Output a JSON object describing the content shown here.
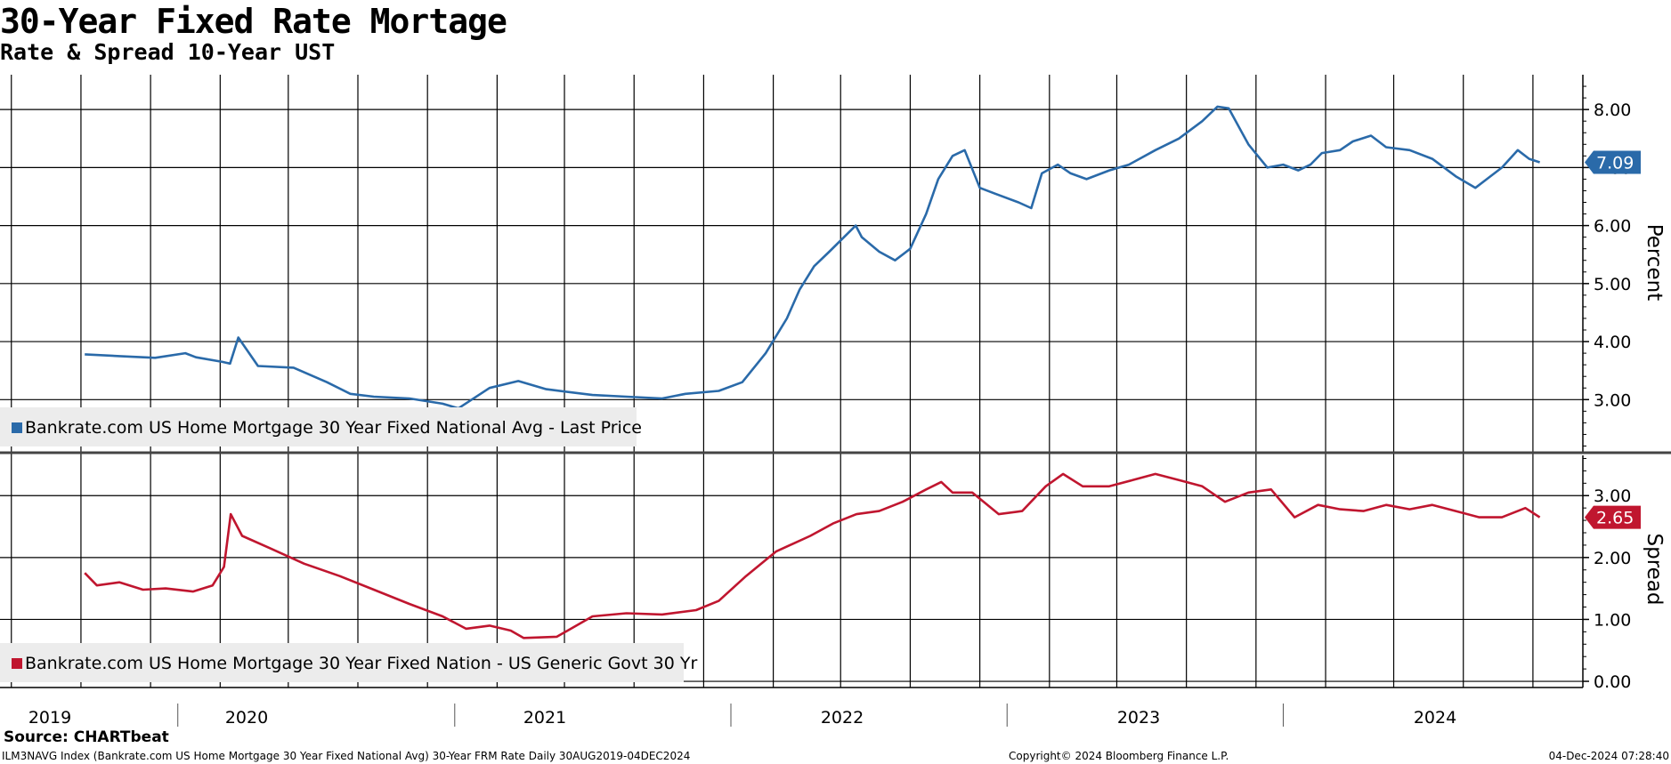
{
  "header": {
    "title": "30-Year Fixed Rate Mortage",
    "subtitle": "Rate & Spread 10-Year UST"
  },
  "footer": {
    "source": "Source: CHARTbeat",
    "description": "ILM3NAVG Index (Bankrate.com US Home Mortgage 30 Year Fixed National Avg) 30-Year FRM Rate  Daily 30AUG2019-04DEC2024",
    "copyright": "Copyright© 2024 Bloomberg Finance L.P.",
    "timestamp": "04-Dec-2024 07:28:40"
  },
  "colors": {
    "rate": "#2a6aa9",
    "spread": "#c0162f",
    "grid": "#000000"
  },
  "chart_data": [
    {
      "type": "line",
      "ylabel": "Percent",
      "ylim": [
        2.1,
        8.6
      ],
      "yticks": [
        "3.00",
        "4.00",
        "5.00",
        "6.00",
        "7.00",
        "8.00"
      ],
      "xticks": [
        "2019",
        "2020",
        "2021",
        "2022",
        "2023",
        "2024"
      ],
      "last_value": "7.09",
      "legend": "Bankrate.com US Home Mortgage 30 Year Fixed National Avg - Last Price",
      "series": [
        {
          "name": "Bankrate.com US Home Mortgage 30 Year Fixed National Avg - Last Price",
          "x": [
            "2019-08-30",
            "2019-10-15",
            "2019-12-01",
            "2020-01-10",
            "2020-01-24",
            "2020-02-28",
            "2020-03-09",
            "2020-03-20",
            "2020-04-15",
            "2020-06-01",
            "2020-07-15",
            "2020-08-15",
            "2020-09-15",
            "2020-11-01",
            "2020-12-15",
            "2021-01-05",
            "2021-02-15",
            "2021-03-25",
            "2021-05-01",
            "2021-07-01",
            "2021-08-15",
            "2021-10-01",
            "2021-11-01",
            "2021-12-15",
            "2022-01-15",
            "2022-02-15",
            "2022-03-15",
            "2022-04-01",
            "2022-04-20",
            "2022-05-10",
            "2022-06-14",
            "2022-06-22",
            "2022-07-15",
            "2022-08-05",
            "2022-08-25",
            "2022-09-15",
            "2022-10-01",
            "2022-10-20",
            "2022-11-05",
            "2022-11-25",
            "2022-12-15",
            "2023-01-15",
            "2023-02-01",
            "2023-02-15",
            "2023-03-08",
            "2023-03-25",
            "2023-04-15",
            "2023-05-15",
            "2023-06-10",
            "2023-07-15",
            "2023-08-15",
            "2023-09-15",
            "2023-10-05",
            "2023-10-20",
            "2023-11-15",
            "2023-12-10",
            "2023-12-31",
            "2024-01-20",
            "2024-02-05",
            "2024-02-20",
            "2024-03-15",
            "2024-04-01",
            "2024-04-25",
            "2024-05-15",
            "2024-06-15",
            "2024-07-15",
            "2024-08-15",
            "2024-09-10",
            "2024-09-25",
            "2024-10-15",
            "2024-11-05",
            "2024-11-20",
            "2024-12-04"
          ],
          "values": [
            3.78,
            3.75,
            3.72,
            3.8,
            3.73,
            3.65,
            3.62,
            4.07,
            3.58,
            3.55,
            3.3,
            3.1,
            3.05,
            3.02,
            2.93,
            2.85,
            3.2,
            3.32,
            3.18,
            3.08,
            3.05,
            3.02,
            3.1,
            3.15,
            3.3,
            3.8,
            4.4,
            4.9,
            5.3,
            5.55,
            6.0,
            5.8,
            5.55,
            5.4,
            5.6,
            6.2,
            6.8,
            7.2,
            7.3,
            6.65,
            6.55,
            6.4,
            6.3,
            6.9,
            7.05,
            6.9,
            6.8,
            6.95,
            7.05,
            7.3,
            7.5,
            7.8,
            8.05,
            8.02,
            7.4,
            7.0,
            7.05,
            6.95,
            7.05,
            7.25,
            7.3,
            7.45,
            7.55,
            7.35,
            7.3,
            7.15,
            6.85,
            6.65,
            6.8,
            7.0,
            7.3,
            7.15,
            7.09
          ]
        }
      ]
    },
    {
      "type": "line",
      "ylabel": "Spread",
      "ylim": [
        -0.1,
        3.65
      ],
      "yticks": [
        "0.00",
        "1.00",
        "2.00",
        "3.00"
      ],
      "xticks": [
        "2019",
        "2020",
        "2021",
        "2022",
        "2023",
        "2024"
      ],
      "last_value": "2.65",
      "legend": "Bankrate.com US Home Mortgage 30 Year Fixed Nation - US Generic Govt 30 Yr",
      "series": [
        {
          "name": "Bankrate.com US Home Mortgage 30 Year Fixed Nation - US Generic Govt 30 Yr",
          "x": [
            "2019-08-30",
            "2019-09-15",
            "2019-10-15",
            "2019-11-15",
            "2019-12-15",
            "2020-01-20",
            "2020-02-15",
            "2020-03-01",
            "2020-03-10",
            "2020-03-25",
            "2020-05-01",
            "2020-06-15",
            "2020-08-01",
            "2020-09-15",
            "2020-11-01",
            "2020-12-15",
            "2021-01-15",
            "2021-02-15",
            "2021-03-15",
            "2021-04-01",
            "2021-05-15",
            "2021-07-01",
            "2021-08-15",
            "2021-10-01",
            "2021-11-15",
            "2021-12-15",
            "2022-01-20",
            "2022-03-01",
            "2022-04-15",
            "2022-05-15",
            "2022-06-15",
            "2022-07-15",
            "2022-08-15",
            "2022-09-15",
            "2022-10-05",
            "2022-10-20",
            "2022-11-15",
            "2022-12-20",
            "2023-01-20",
            "2023-02-20",
            "2023-03-15",
            "2023-04-10",
            "2023-05-15",
            "2023-06-15",
            "2023-07-15",
            "2023-08-15",
            "2023-09-15",
            "2023-10-15",
            "2023-11-15",
            "2023-12-15",
            "2024-01-15",
            "2024-02-15",
            "2024-03-15",
            "2024-04-15",
            "2024-05-15",
            "2024-06-15",
            "2024-07-15",
            "2024-08-15",
            "2024-09-15",
            "2024-10-15",
            "2024-11-15",
            "2024-12-04"
          ],
          "values": [
            1.75,
            1.55,
            1.6,
            1.48,
            1.5,
            1.45,
            1.55,
            1.85,
            2.7,
            2.35,
            2.15,
            1.9,
            1.7,
            1.48,
            1.25,
            1.05,
            0.85,
            0.9,
            0.82,
            0.7,
            0.72,
            1.05,
            1.1,
            1.08,
            1.15,
            1.3,
            1.7,
            2.1,
            2.35,
            2.55,
            2.7,
            2.75,
            2.9,
            3.1,
            3.22,
            3.05,
            3.05,
            2.7,
            2.75,
            3.15,
            3.35,
            3.15,
            3.15,
            3.25,
            3.35,
            3.25,
            3.15,
            2.9,
            3.05,
            3.1,
            2.65,
            2.85,
            2.78,
            2.75,
            2.85,
            2.78,
            2.85,
            2.75,
            2.65,
            2.65,
            2.8,
            2.65
          ]
        }
      ]
    }
  ]
}
